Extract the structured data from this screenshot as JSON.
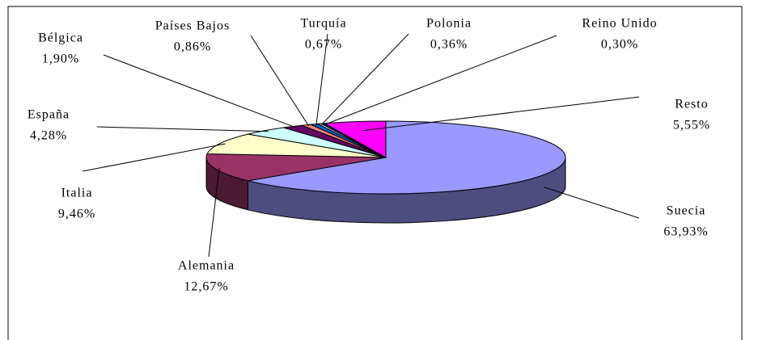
{
  "chart_data": {
    "type": "pie",
    "categories": [
      "Suecia",
      "Alemania",
      "Italia",
      "España",
      "Bélgica",
      "Países Bajos",
      "Turquía",
      "Polonia",
      "Reino Unido",
      "Resto"
    ],
    "values": [
      63.93,
      12.67,
      9.46,
      4.28,
      1.9,
      0.86,
      0.67,
      0.36,
      0.3,
      5.55
    ],
    "value_labels": [
      "63,93%",
      "12,67%",
      "9,46%",
      "4,28%",
      "1,90%",
      "0,86%",
      "0,67%",
      "0,36%",
      "0,30%",
      "5,55%"
    ],
    "colors": [
      "#9999ff",
      "#993366",
      "#ffffcc",
      "#ccffff",
      "#660066",
      "#ff8080",
      "#0066cc",
      "#ccccff",
      "#000080",
      "#ff00ff"
    ]
  }
}
